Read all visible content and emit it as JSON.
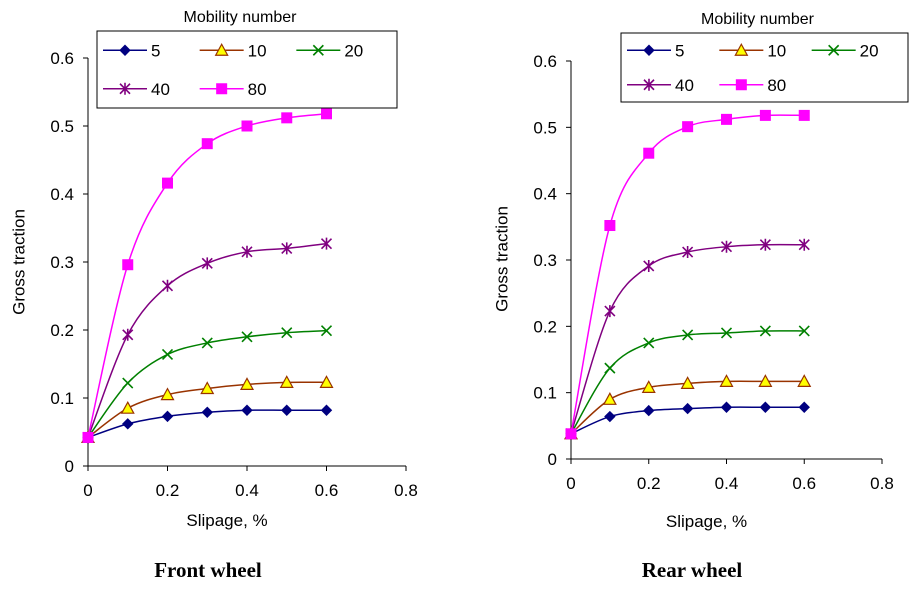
{
  "chart_data": [
    {
      "type": "line",
      "caption": "Front wheel",
      "legend_title": "Mobility number",
      "xlabel": "Slipage, %",
      "ylabel": "Gross traction",
      "xlim": [
        0,
        0.8
      ],
      "ylim": [
        0,
        0.6
      ],
      "xticks": [
        "0",
        "0.2",
        "0.4",
        "0.6",
        "0.8"
      ],
      "yticks": [
        "0",
        "0.1",
        "0.2",
        "0.3",
        "0.4",
        "0.5",
        "0.6"
      ],
      "grid": false,
      "legend_position": "top",
      "x": [
        0,
        0.1,
        0.2,
        0.3,
        0.4,
        0.5,
        0.6
      ],
      "series": [
        {
          "name": "5",
          "marker": "diamond",
          "color": "#000080",
          "values": [
            0.042,
            0.062,
            0.073,
            0.079,
            0.082,
            0.082,
            0.082
          ]
        },
        {
          "name": "10",
          "marker": "triangle",
          "color": "#993300",
          "fill": "#FFFF00",
          "values": [
            0.042,
            0.085,
            0.105,
            0.114,
            0.12,
            0.123,
            0.123
          ]
        },
        {
          "name": "20",
          "marker": "x",
          "color": "#008000",
          "values": [
            0.042,
            0.122,
            0.164,
            0.181,
            0.19,
            0.196,
            0.199
          ]
        },
        {
          "name": "40",
          "marker": "asterisk",
          "color": "#800080",
          "values": [
            0.042,
            0.193,
            0.265,
            0.298,
            0.315,
            0.32,
            0.327
          ]
        },
        {
          "name": "80",
          "marker": "square",
          "color": "#FF00FF",
          "values": [
            0.042,
            0.296,
            0.416,
            0.474,
            0.5,
            0.512,
            0.518
          ]
        }
      ]
    },
    {
      "type": "line",
      "caption": "Rear wheel",
      "legend_title": "Mobility number",
      "xlabel": "Slipage, %",
      "ylabel": "Gross traction",
      "xlim": [
        0,
        0.8
      ],
      "ylim": [
        0,
        0.6
      ],
      "xticks": [
        "0",
        "0.2",
        "0.4",
        "0.6",
        "0.8"
      ],
      "yticks": [
        "0",
        "0.1",
        "0.2",
        "0.3",
        "0.4",
        "0.5",
        "0.6"
      ],
      "grid": false,
      "legend_position": "top",
      "x": [
        0,
        0.1,
        0.2,
        0.3,
        0.4,
        0.5,
        0.6
      ],
      "series": [
        {
          "name": "5",
          "marker": "diamond",
          "color": "#000080",
          "values": [
            0.038,
            0.064,
            0.073,
            0.076,
            0.078,
            0.078,
            0.078
          ]
        },
        {
          "name": "10",
          "marker": "triangle",
          "color": "#993300",
          "fill": "#FFFF00",
          "values": [
            0.038,
            0.09,
            0.108,
            0.114,
            0.117,
            0.117,
            0.117
          ]
        },
        {
          "name": "20",
          "marker": "x",
          "color": "#008000",
          "values": [
            0.038,
            0.137,
            0.175,
            0.187,
            0.19,
            0.193,
            0.193
          ]
        },
        {
          "name": "40",
          "marker": "asterisk",
          "color": "#800080",
          "values": [
            0.038,
            0.223,
            0.291,
            0.312,
            0.32,
            0.323,
            0.323
          ]
        },
        {
          "name": "80",
          "marker": "square",
          "color": "#FF00FF",
          "values": [
            0.038,
            0.352,
            0.461,
            0.501,
            0.512,
            0.518,
            0.518
          ]
        }
      ]
    }
  ]
}
